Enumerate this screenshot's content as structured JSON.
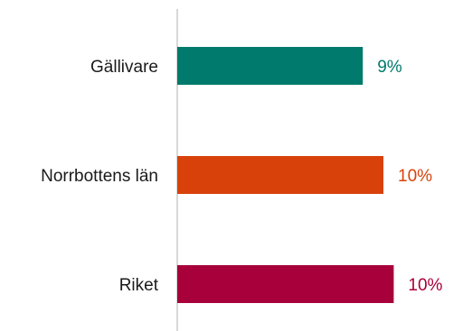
{
  "chart_data": {
    "type": "bar",
    "orientation": "horizontal",
    "title": "",
    "xlabel": "",
    "ylabel": "",
    "categories": [
      "Gällivare",
      "Norrbottens län",
      "Riket"
    ],
    "values": [
      9,
      10,
      10.5
    ],
    "value_labels": [
      "9%",
      "10%",
      "10%"
    ],
    "colors": [
      "#007a6c",
      "#d9410b",
      "#a8003a"
    ],
    "xlim": [
      0,
      11
    ],
    "grid": false,
    "legend": "none"
  }
}
